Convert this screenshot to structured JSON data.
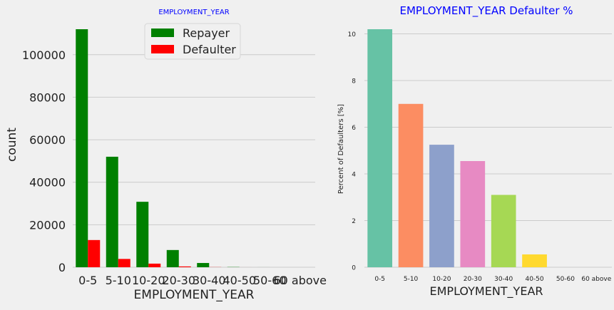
{
  "chart_data": [
    {
      "type": "bar",
      "title": "EMPLOYMENT_YEAR",
      "xlabel": "EMPLOYMENT_YEAR",
      "ylabel": "count",
      "categories": [
        "0-5",
        "5-10",
        "10-20",
        "20-30",
        "30-40",
        "40-50",
        "50-60",
        "60 above"
      ],
      "series": [
        {
          "name": "Repayer",
          "color": "#008000",
          "values": [
            112000,
            52000,
            30800,
            8100,
            2000,
            100,
            10,
            0
          ]
        },
        {
          "name": "Defaulter",
          "color": "#ff0000",
          "values": [
            12800,
            3900,
            1700,
            380,
            60,
            5,
            0,
            0
          ]
        }
      ],
      "ylim": [
        0,
        112000
      ],
      "yticks": [
        0,
        20000,
        40000,
        60000,
        80000,
        100000
      ],
      "legend": "top-center",
      "grid": "horizontal"
    },
    {
      "type": "bar",
      "title": "EMPLOYMENT_YEAR Defaulter %",
      "xlabel": "EMPLOYMENT_YEAR",
      "ylabel": "Percent of Defaulters [%]",
      "categories": [
        "0-5",
        "5-10",
        "10-20",
        "20-30",
        "30-40",
        "40-50",
        "50-60",
        "60 above"
      ],
      "values": [
        10.2,
        7.0,
        5.25,
        4.55,
        3.1,
        0.55,
        0,
        0
      ],
      "colors": [
        "#66c2a5",
        "#fc8d62",
        "#8da0cb",
        "#e78ac3",
        "#a6d854",
        "#ffd92f",
        "#e5c494",
        "#b3b3b3"
      ],
      "ylim": [
        0,
        10.2
      ],
      "yticks": [
        0,
        2,
        4,
        6,
        8,
        10
      ],
      "grid": "horizontal"
    }
  ]
}
